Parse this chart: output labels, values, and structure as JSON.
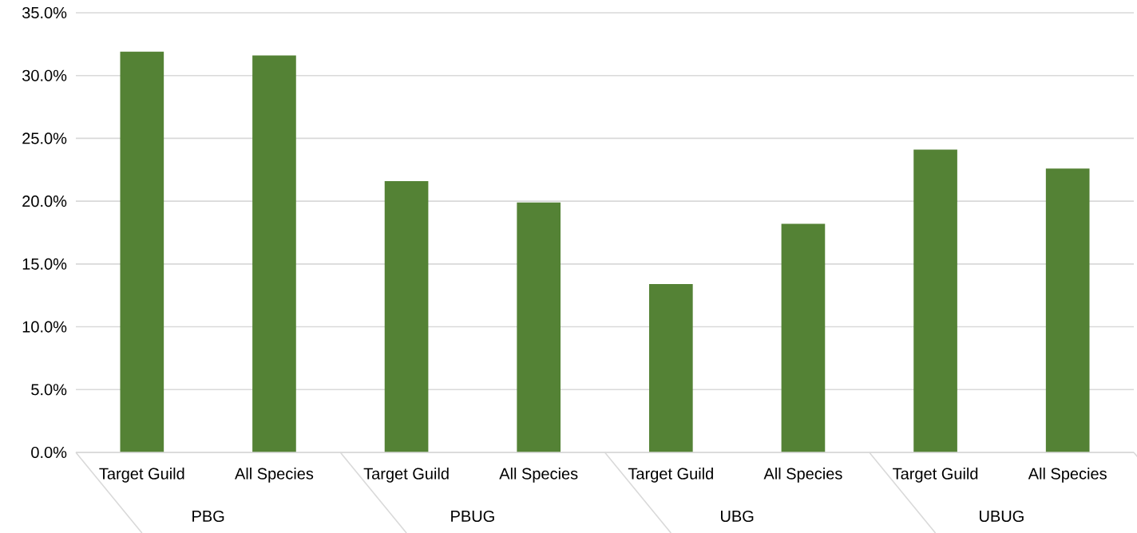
{
  "chart_data": {
    "type": "bar",
    "categories": [
      "Target Guild",
      "All Species",
      "Target Guild",
      "All Species",
      "Target Guild",
      "All Species",
      "Target Guild",
      "All Species"
    ],
    "values": [
      31.9,
      31.6,
      21.6,
      19.9,
      13.4,
      18.2,
      24.1,
      22.6
    ],
    "color": "#548235",
    "ylim": [
      0,
      35
    ],
    "yticks": [
      {
        "value": 0,
        "label": "0.0%"
      },
      {
        "value": 5,
        "label": "5.0%"
      },
      {
        "value": 10,
        "label": "10.0%"
      },
      {
        "value": 15,
        "label": "15.0%"
      },
      {
        "value": 20,
        "label": "20.0%"
      },
      {
        "value": 25,
        "label": "25.0%"
      },
      {
        "value": 30,
        "label": "30.0%"
      },
      {
        "value": 35,
        "label": "35.0%"
      }
    ],
    "grid": "y",
    "annotations": [
      "PBG",
      "PBUG",
      "UBG",
      "UBUG"
    ]
  }
}
